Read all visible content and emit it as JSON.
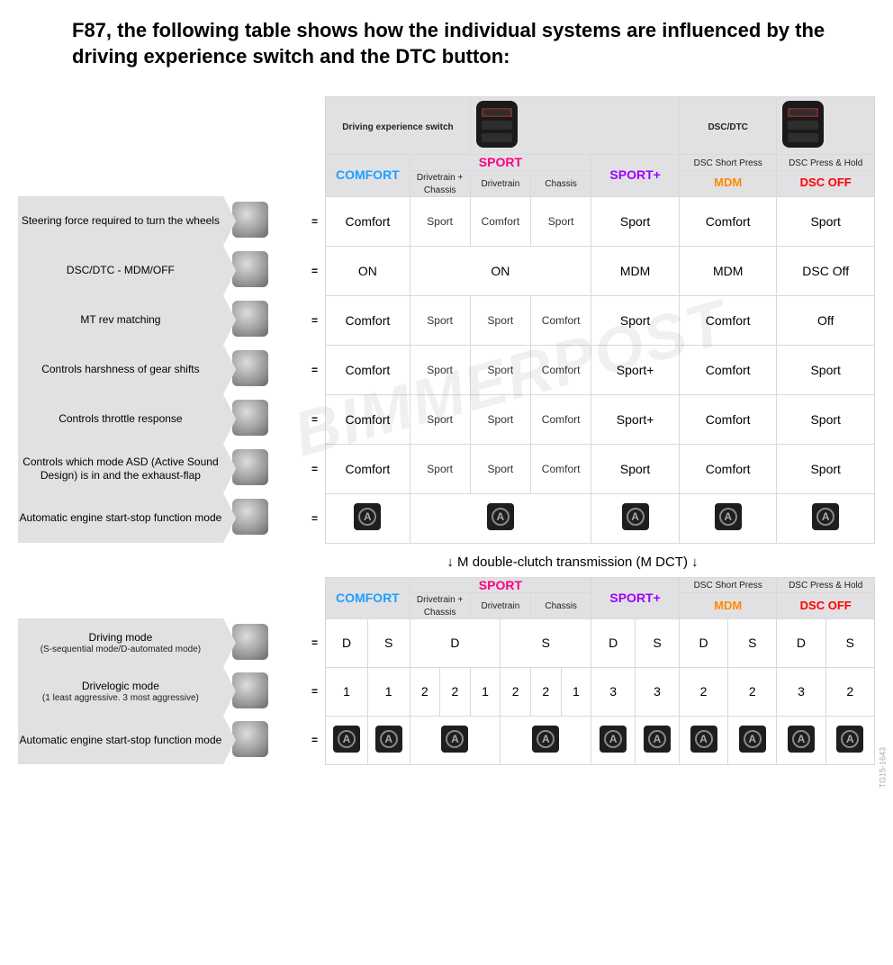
{
  "title": "F87, the following table shows how the individual systems are influenced by the driving experience switch and the DTC button:",
  "watermark": "BIMMERPOST",
  "sidecode": "TG15-1643",
  "header": {
    "drivingExperienceLabel": "Driving experience switch",
    "dscDtcLabel": "DSC/DTC",
    "comfort": "COMFORT",
    "sport": "SPORT",
    "sportPlus": "SPORT+",
    "dscShortPress": "DSC Short Press",
    "dscPressHold": "DSC Press & Hold",
    "mdm": "MDM",
    "dscOff": "DSC OFF",
    "sportSubs": {
      "drivetrainChassis": "Drivetrain + Chassis",
      "drivetrain": "Drivetrain",
      "chassis": "Chassis"
    }
  },
  "rows1": [
    {
      "label": "Steering force required to turn the wheels",
      "cells": [
        "Comfort",
        "Sport",
        "Comfort",
        "Sport",
        "Sport",
        "Comfort",
        "Sport"
      ]
    },
    {
      "label": "DSC/DTC - MDM/OFF",
      "cells": [
        "ON",
        "__SPAN3__ON",
        "",
        "",
        "MDM",
        "MDM",
        "DSC Off"
      ]
    },
    {
      "label": "MT rev matching",
      "cells": [
        "Comfort",
        "Sport",
        "Sport",
        "Comfort",
        "Sport",
        "Comfort",
        "Off"
      ]
    },
    {
      "label": "Controls harshness of gear shifts",
      "cells": [
        "Comfort",
        "Sport",
        "Sport",
        "Comfort",
        "Sport+",
        "Comfort",
        "Sport"
      ]
    },
    {
      "label": "Controls throttle response",
      "cells": [
        "Comfort",
        "Sport",
        "Sport",
        "Comfort",
        "Sport+",
        "Comfort",
        "Sport"
      ]
    },
    {
      "label": "Controls which mode ASD (Active Sound Design) is in and the exhaust-flap",
      "cells": [
        "Comfort",
        "Sport",
        "Sport",
        "Comfort",
        "Sport",
        "Comfort",
        "Sport"
      ]
    },
    {
      "label": "Automatic engine start-stop function mode",
      "cells": [
        "__STOP__",
        "__SPAN3__STOP",
        "",
        "",
        "__STOP__",
        "__STOP__",
        "__STOP__"
      ]
    }
  ],
  "mdctLabel": "↓ M double-clutch transmission (M DCT) ↓",
  "rows2": [
    {
      "label": "Driving mode",
      "sublabel": "(S-sequential mode/D-automated mode)",
      "pairs": [
        [
          "D",
          "S"
        ],
        [
          "__SPAND__",
          "",
          "__SPANS__",
          ""
        ],
        [
          "D",
          "S"
        ],
        [
          "D",
          "S"
        ],
        [
          "D",
          "S"
        ]
      ]
    },
    {
      "label": "Drivelogic mode",
      "sublabel": "(1 least aggressive. 3 most aggressive)",
      "pairs": [
        [
          "1",
          "1"
        ],
        [
          "2",
          "2",
          "1",
          "2",
          "2",
          "1"
        ],
        [
          "3",
          "3"
        ],
        [
          "2",
          "2"
        ],
        [
          "3",
          "2"
        ]
      ]
    },
    {
      "label": "Automatic engine start-stop function mode",
      "sublabel": "",
      "pairs": [
        [
          "__STOP__",
          "__STOP__"
        ],
        [
          "__STOPSPAN__",
          "",
          "__STOPSPAN__",
          ""
        ],
        [
          "__STOP__",
          "__STOP__"
        ],
        [
          "__STOP__",
          "__STOP__"
        ],
        [
          "__STOP__",
          "__STOP__"
        ]
      ]
    }
  ],
  "colors": {
    "comfort": "#1fa0ff",
    "sport": "#ff0086",
    "sportPlus": "#a000ff",
    "mdm": "#ff8a00",
    "dscOff": "#ff0000",
    "gridBorder": "#d9d9d9",
    "grayFill": "#e1e1e3"
  }
}
